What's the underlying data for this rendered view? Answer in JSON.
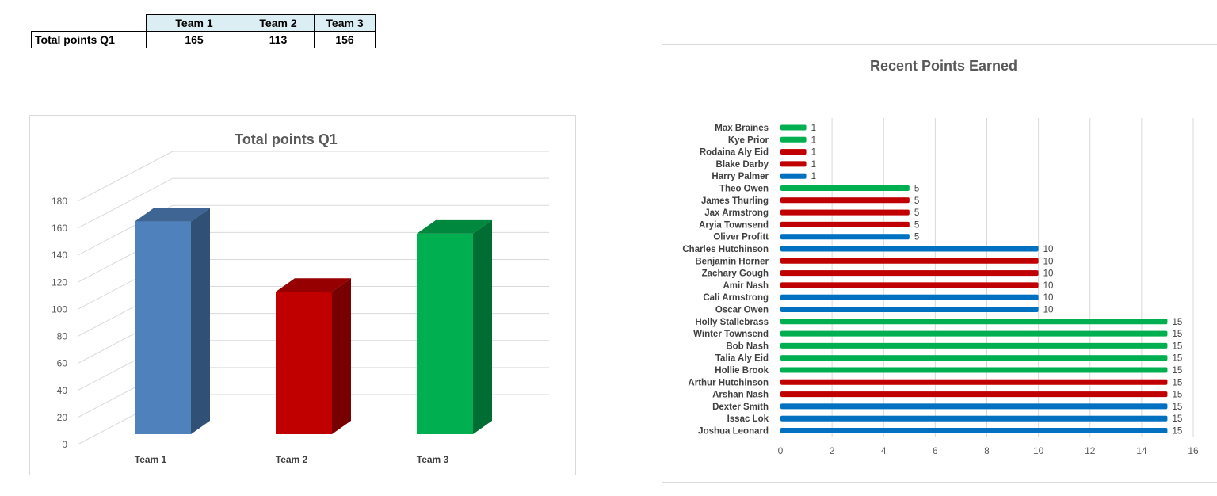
{
  "summary_table": {
    "headers": [
      "Team 1",
      "Team 2",
      "Team 3"
    ],
    "row_label": "Total points Q1",
    "values": [
      "165",
      "113",
      "156"
    ]
  },
  "chart_data": [
    {
      "type": "bar",
      "title": "Total points Q1",
      "categories": [
        "Team 1",
        "Team 2",
        "Team 3"
      ],
      "values": [
        165,
        113,
        156
      ],
      "ylim": [
        0,
        180
      ],
      "yticks": [
        0,
        20,
        40,
        60,
        80,
        100,
        120,
        140,
        160,
        180
      ],
      "style": "3d-column",
      "grid": true,
      "colors": [
        "#4f81bd",
        "#c00000",
        "#00b050"
      ]
    },
    {
      "type": "bar",
      "orientation": "horizontal",
      "title": "Recent Points Earned",
      "categories": [
        "Max Braines",
        "Kye Prior",
        "Rodaina Aly Eid",
        "Blake Darby",
        "Harry Palmer",
        "Theo Owen",
        "James Thurling",
        "Jax Armstrong",
        "Aryia Townsend",
        "Oliver Profitt",
        "Charles Hutchinson",
        "Benjamin Horner",
        "Zachary Gough",
        "Amir Nash",
        "Cali Armstrong",
        "Oscar Owen",
        "Holly Stallebrass",
        "Winter Townsend",
        "Bob Nash",
        "Talia Aly Eid",
        "Hollie Brook",
        "Arthur Hutchinson",
        "Arshan Nash",
        "Dexter Smith",
        "Issac Lok",
        "Joshua Leonard"
      ],
      "values": [
        1,
        1,
        1,
        1,
        1,
        5,
        5,
        5,
        5,
        5,
        10,
        10,
        10,
        10,
        10,
        10,
        15,
        15,
        15,
        15,
        15,
        15,
        15,
        15,
        15,
        15
      ],
      "bar_colors": [
        "#00b050",
        "#00b050",
        "#c00000",
        "#c00000",
        "#0070c0",
        "#00b050",
        "#c00000",
        "#c00000",
        "#c00000",
        "#0070c0",
        "#0070c0",
        "#c00000",
        "#c00000",
        "#c00000",
        "#0070c0",
        "#0070c0",
        "#00b050",
        "#00b050",
        "#00b050",
        "#00b050",
        "#00b050",
        "#c00000",
        "#c00000",
        "#0070c0",
        "#0070c0",
        "#0070c0"
      ],
      "xlim": [
        0,
        16
      ],
      "xticks": [
        0,
        2,
        4,
        6,
        8,
        10,
        12,
        14,
        16
      ],
      "grid": true
    }
  ]
}
